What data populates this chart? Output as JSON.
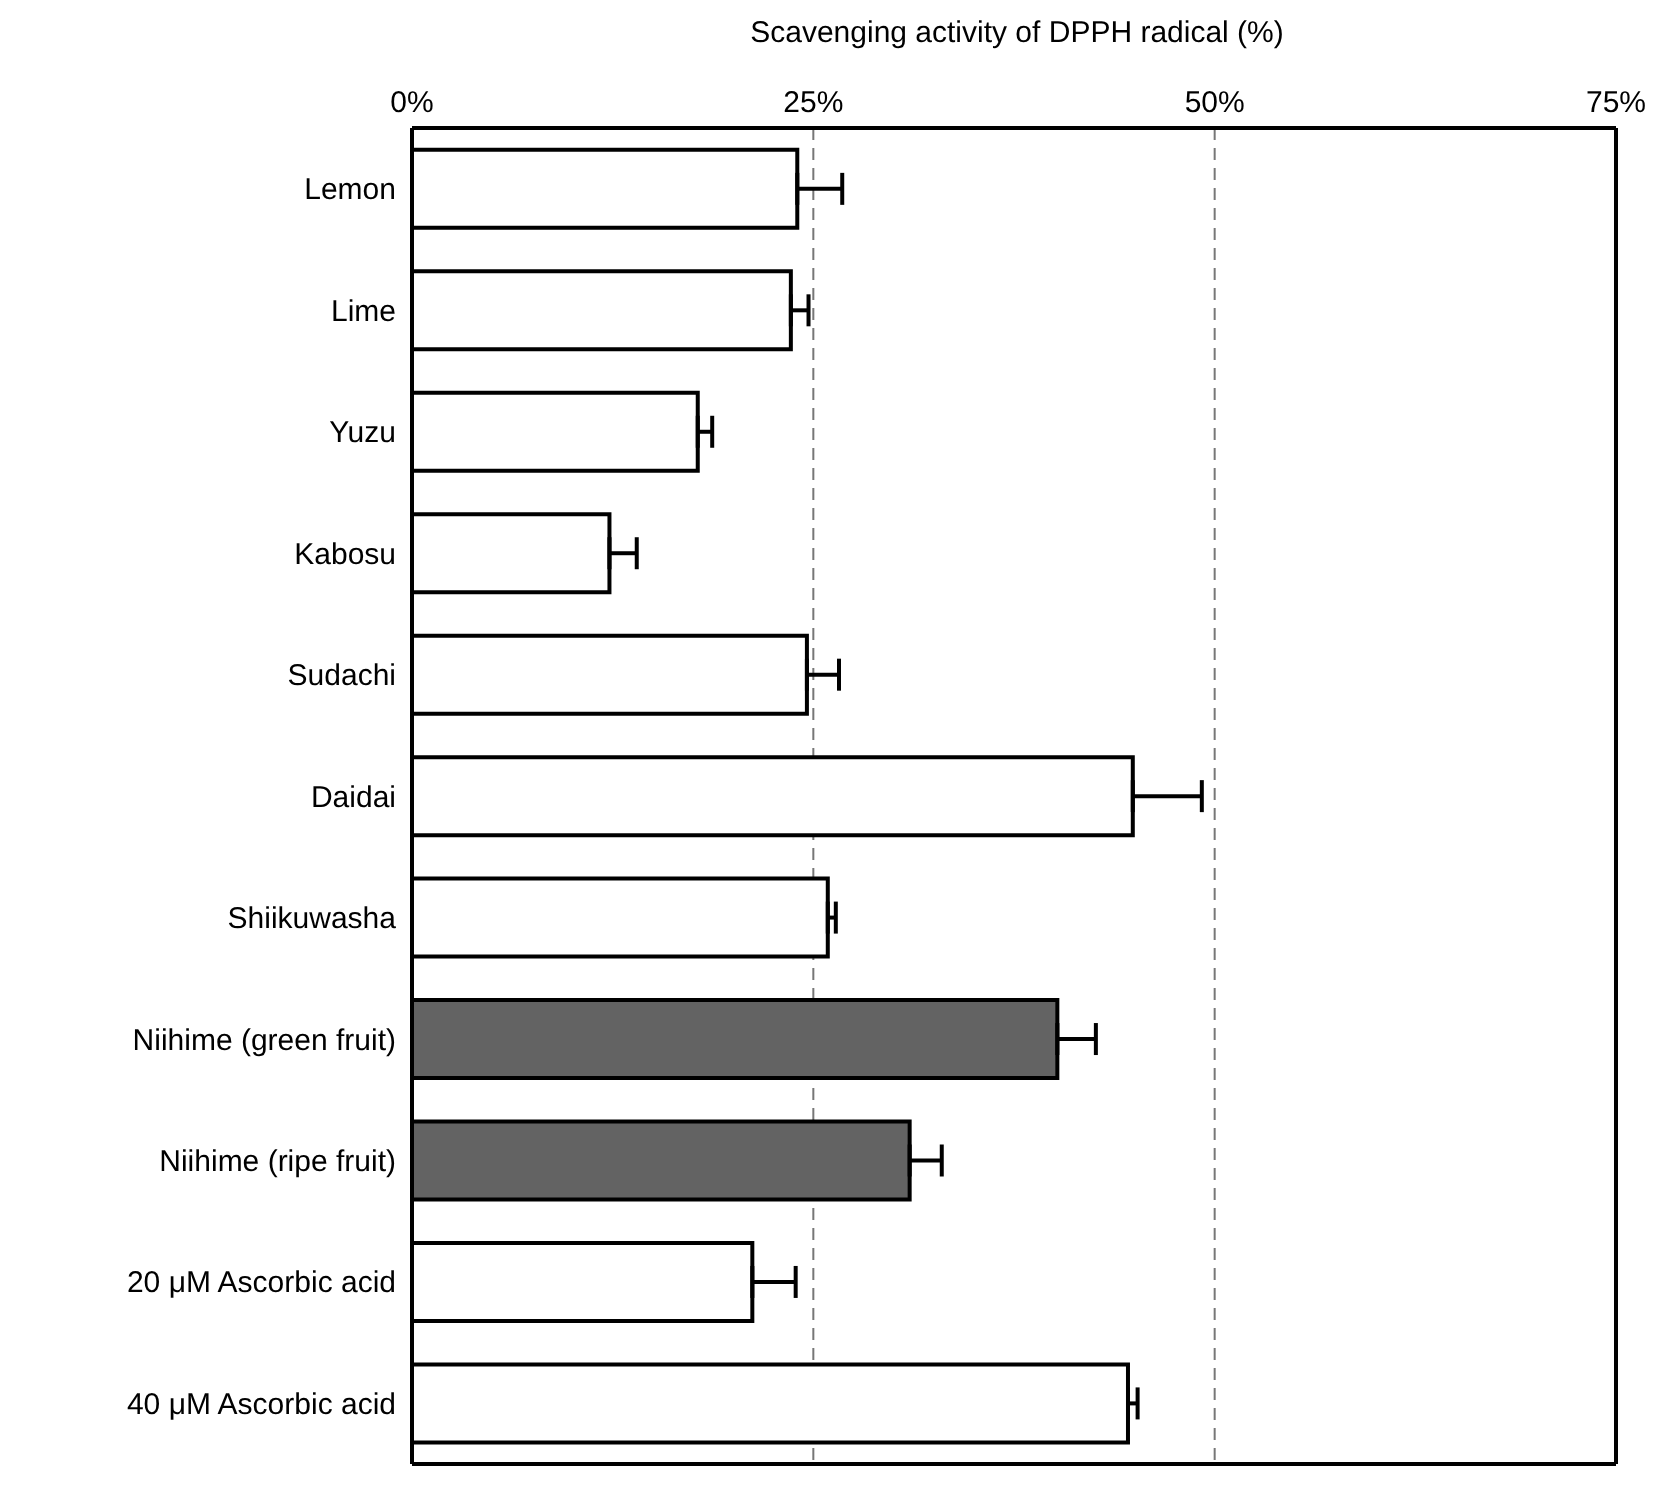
{
  "chart_data": {
    "type": "bar",
    "orientation": "horizontal",
    "xlabel": "Scavenging activity of DPPH radical (%)",
    "categories": [
      "Lemon",
      "Lime",
      "Yuzu",
      "Kabosu",
      "Sudachi",
      "Daidai",
      "Shiikuwasha",
      "Niihime (green fruit)",
      "Niihime (ripe fruit)",
      "20 μM Ascorbic acid",
      "40 μM Ascorbic acid"
    ],
    "values": [
      24.0,
      23.6,
      17.8,
      12.3,
      24.6,
      44.9,
      25.9,
      40.2,
      31.0,
      21.2,
      44.6
    ],
    "errors": [
      [
        24.0,
        26.8
      ],
      [
        23.6,
        24.7
      ],
      [
        17.8,
        18.7
      ],
      [
        12.3,
        14.0
      ],
      [
        24.6,
        26.6
      ],
      [
        44.9,
        49.2
      ],
      [
        25.9,
        26.4
      ],
      [
        40.2,
        42.6
      ],
      [
        31.0,
        33.0
      ],
      [
        21.2,
        23.9
      ],
      [
        44.6,
        45.2
      ]
    ],
    "colors": [
      "#ffffff",
      "#ffffff",
      "#ffffff",
      "#ffffff",
      "#ffffff",
      "#ffffff",
      "#ffffff",
      "#636363",
      "#636363",
      "#ffffff",
      "#ffffff"
    ],
    "xlim": [
      0,
      75
    ],
    "xticks": [
      {
        "value": 0,
        "label": "0%"
      },
      {
        "value": 25,
        "label": "25%"
      },
      {
        "value": 50,
        "label": "50%"
      },
      {
        "value": 75,
        "label": "75%"
      }
    ],
    "grid": "x"
  }
}
